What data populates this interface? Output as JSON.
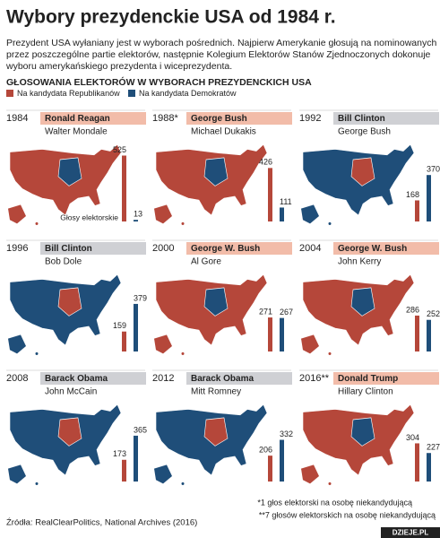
{
  "header": {
    "title": "Wybory prezydenckie USA od 1984 r.",
    "subtitle": [
      "Prezydent USA wyłaniany jest w wyborach pośrednich. Najpierw Amerykanie głosują na nominowanych",
      "przez poszczególne partie elektorów, następnie Kolegium Elektorów Stanów Zjednoczonych dokonuje",
      "wyboru amerykańskiego prezydenta i wiceprezydenta."
    ]
  },
  "chart_heading": "GŁOSOWANIA ELEKTORÓW W WYBORACH PREZYDENCKICH USA",
  "legend": [
    {
      "label": "Na kandydata Republikanów",
      "color": "#b5473a"
    },
    {
      "label": "Na kandydata Demokratów",
      "color": "#1f4e79"
    }
  ],
  "axis_label": "Głosy elektorskie",
  "panels": [
    {
      "year": "1984",
      "winner": "Ronald Reagan",
      "winner_color": "#f2bca9",
      "runner_up": "Walter Mondale",
      "values": [
        525,
        13
      ]
    },
    {
      "year": "1988*",
      "winner": "George Bush",
      "winner_color": "#f2bca9",
      "runner_up": "Michael Dukakis",
      "values": [
        426,
        111
      ]
    },
    {
      "year": "1992",
      "winner": "Bill Clinton",
      "winner_color": "#cfd0d4",
      "runner_up": "George Bush",
      "values": [
        168,
        370
      ]
    },
    {
      "year": "1996",
      "winner": "Bill Clinton",
      "winner_color": "#cfd0d4",
      "runner_up": "Bob Dole",
      "values": [
        159,
        379
      ]
    },
    {
      "year": "2000",
      "winner": "George W. Bush",
      "winner_color": "#f2bca9",
      "runner_up": "Al Gore",
      "values": [
        271,
        267
      ]
    },
    {
      "year": "2004",
      "winner": "George W. Bush",
      "winner_color": "#f2bca9",
      "runner_up": "John Kerry",
      "values": [
        286,
        252
      ]
    },
    {
      "year": "2008",
      "winner": "Barack Obama",
      "winner_color": "#cfd0d4",
      "runner_up": "John McCain",
      "values": [
        173,
        365
      ]
    },
    {
      "year": "2012",
      "winner": "Barack Obama",
      "winner_color": "#cfd0d4",
      "runner_up": "Mitt Romney",
      "values": [
        206,
        332
      ]
    },
    {
      "year": "2016**",
      "winner": "Donald Trump",
      "winner_color": "#f2bca9",
      "runner_up": "Hillary Clinton",
      "values": [
        304,
        227
      ]
    }
  ],
  "footnotes": [
    "*1 głos elektorski na osobę niekandydującą",
    "**7 głosów elektorskich na osobę niekandydującą"
  ],
  "source": "Źródła: RealClearPolitics, National Archives (2016)",
  "brand": "DZIEJE.PL"
}
